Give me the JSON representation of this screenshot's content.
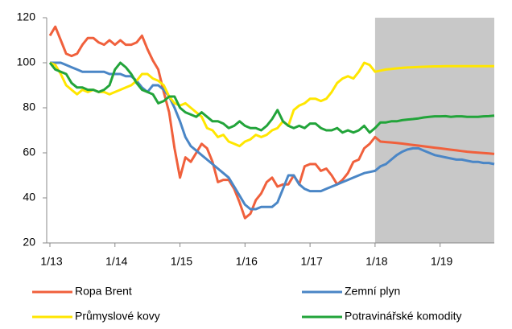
{
  "chart_data": {
    "type": "line",
    "categories": [
      "1/13",
      null,
      null,
      null,
      null,
      null,
      null,
      null,
      null,
      null,
      null,
      null,
      "1/14",
      null,
      null,
      null,
      null,
      null,
      null,
      null,
      null,
      null,
      null,
      null,
      "1/15",
      null,
      null,
      null,
      null,
      null,
      null,
      null,
      null,
      null,
      null,
      null,
      "1/16",
      null,
      null,
      null,
      null,
      null,
      null,
      null,
      null,
      null,
      null,
      null,
      "1/17",
      null,
      null,
      null,
      null,
      null,
      null,
      null,
      null,
      null,
      null,
      null,
      "1/18",
      null,
      null,
      null,
      null,
      null,
      null,
      null,
      null,
      null,
      null,
      null,
      "1/19",
      null,
      null,
      null,
      null,
      null,
      null,
      null,
      null,
      null,
      null
    ],
    "ylim": [
      20,
      120
    ],
    "yticks": [
      20,
      40,
      60,
      80,
      100,
      120
    ],
    "shaded_region": {
      "from": "1/18",
      "color": "#c8c8c8"
    },
    "series": [
      {
        "name": "Ropa Brent",
        "color": "#f0603c",
        "values": [
          112,
          116,
          110,
          104,
          103,
          104,
          108,
          111,
          111,
          109,
          108,
          110,
          108,
          110,
          108,
          108,
          109,
          112,
          106,
          101,
          97,
          87,
          78,
          62,
          49,
          58,
          56,
          60,
          64,
          62,
          56,
          47,
          48,
          48,
          44,
          38,
          31,
          33,
          39,
          42,
          47,
          49,
          45,
          46,
          46,
          50,
          46,
          54,
          55,
          55,
          52,
          53,
          50,
          46,
          48,
          51,
          56,
          57,
          62,
          64,
          67,
          65,
          64.8,
          64.6,
          64.4,
          64.1,
          63.8,
          63.5,
          63.2,
          62.9,
          62.6,
          62.3,
          62,
          61.7,
          61.4,
          61.1,
          60.8,
          60.5,
          60.3,
          60.1,
          59.9,
          59.7,
          59.5
        ]
      },
      {
        "name": "Zemní plyn",
        "color": "#4a86c6",
        "values": [
          100,
          100,
          100,
          99,
          98,
          97,
          96,
          96,
          96,
          96,
          96,
          95,
          95,
          95,
          94,
          94,
          92,
          89,
          87,
          90,
          90,
          88,
          85,
          80,
          74,
          67,
          63,
          61,
          59,
          57,
          55,
          53,
          51,
          49,
          45,
          41,
          37,
          35,
          35,
          36,
          36,
          36,
          38,
          44,
          50,
          50,
          46,
          44,
          43,
          43,
          43,
          44,
          45,
          46,
          47,
          48,
          49,
          50,
          51,
          51.5,
          52,
          54,
          55,
          57,
          59,
          60.5,
          61.5,
          62,
          62,
          61,
          60,
          59,
          58.5,
          58,
          57.5,
          57,
          57,
          56.5,
          56,
          56,
          55.5,
          55.5,
          55
        ]
      },
      {
        "name": "Průmyslové kovy",
        "color": "#ffe600",
        "values": [
          100,
          99,
          95,
          90,
          88,
          86,
          88,
          87,
          88,
          87,
          87,
          86,
          87,
          88,
          89,
          90,
          92,
          95,
          95,
          93,
          92,
          90,
          85,
          82,
          81,
          82,
          80,
          78,
          76,
          71,
          70,
          67,
          68,
          65,
          64,
          63,
          65,
          66,
          68,
          67,
          68,
          70,
          71,
          74,
          72,
          79,
          81,
          82,
          84,
          84,
          83,
          84,
          87,
          91,
          93,
          94,
          93,
          96,
          100,
          99,
          96,
          96.5,
          97,
          97.2,
          97.5,
          97.7,
          97.9,
          98,
          98.1,
          98.2,
          98.3,
          98.4,
          98.4,
          98.5,
          98.5,
          98.5,
          98.5,
          98.5,
          98.5,
          98.5,
          98.5,
          98.5,
          98.5
        ]
      },
      {
        "name": "Potravinářské komodity",
        "color": "#22a43a",
        "values": [
          100,
          97,
          96,
          95,
          91,
          89,
          89,
          88,
          88,
          87,
          88,
          90,
          97,
          100,
          98,
          95,
          91,
          88,
          87,
          86,
          82,
          83,
          85,
          85,
          80,
          78,
          77,
          76,
          78,
          76,
          74,
          74,
          73,
          71,
          72,
          74,
          72,
          71,
          71,
          70,
          72,
          75,
          79,
          74,
          72,
          71,
          72,
          71,
          73,
          73,
          71,
          70,
          70,
          71,
          69,
          70,
          69,
          70,
          72,
          69,
          71,
          73.5,
          73.5,
          74,
          74,
          74.5,
          74.8,
          75,
          75.3,
          75.7,
          76,
          76.2,
          76.2,
          76.3,
          76,
          76.2,
          76.2,
          76,
          76,
          76,
          76.2,
          76.3,
          76.5
        ]
      }
    ],
    "legend": "bottom"
  }
}
